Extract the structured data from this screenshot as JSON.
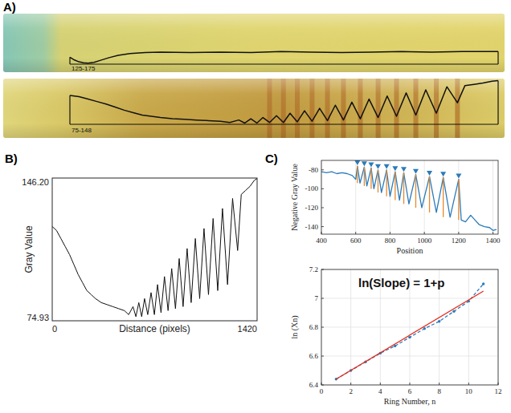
{
  "chart_data": [
    {
      "type": "line",
      "panel_label": "A)",
      "annotation": "125-175",
      "x": [
        0,
        15,
        30,
        45,
        60,
        80,
        100,
        130,
        160,
        200,
        250,
        300,
        400,
        500,
        600,
        700,
        800,
        900,
        1000,
        1100,
        1200,
        1300,
        1420
      ],
      "values": [
        140,
        134,
        130,
        128,
        127,
        129,
        133,
        139,
        144,
        148,
        150,
        151,
        150,
        151,
        150,
        152,
        151,
        150,
        151,
        152,
        151,
        152,
        152
      ],
      "xlim": [
        0,
        1420
      ],
      "ylim": [
        125,
        175
      ],
      "tick_labels": false,
      "color": "#111111"
    },
    {
      "type": "line",
      "annotation": "75-148",
      "x": [
        0,
        30,
        60,
        90,
        120,
        150,
        180,
        210,
        240,
        270,
        300,
        340,
        380,
        420,
        460,
        500,
        530,
        560,
        580,
        600,
        620,
        640,
        662,
        685,
        708,
        730,
        754,
        778,
        803,
        828,
        854,
        880,
        907,
        935,
        963,
        992,
        1022,
        1052,
        1083,
        1115,
        1147,
        1180,
        1215,
        1250,
        1285,
        1310,
        1340,
        1370,
        1400,
        1420
      ],
      "values": [
        122,
        120,
        116,
        112,
        108,
        103,
        98,
        94,
        90,
        88,
        86,
        84,
        83,
        82,
        81,
        80,
        78,
        82,
        77,
        84,
        77,
        86,
        78,
        89,
        78,
        93,
        79,
        97,
        80,
        101,
        81,
        106,
        82,
        111,
        84,
        116,
        86,
        121,
        88,
        126,
        90,
        131,
        93,
        136,
        110,
        138,
        140,
        142,
        145,
        146
      ],
      "bands": [
        662,
        708,
        754,
        803,
        854,
        907,
        963,
        1022,
        1083,
        1147,
        1215,
        1285
      ],
      "xlim": [
        0,
        1420
      ],
      "ylim": [
        75,
        148
      ],
      "tick_labels": false,
      "color": "#111111"
    },
    {
      "type": "line",
      "panel_label": "B)",
      "x_label": "Distance (pixels)",
      "y_label": "Gray Value",
      "x": [
        0,
        30,
        60,
        90,
        120,
        150,
        180,
        210,
        240,
        270,
        300,
        340,
        380,
        420,
        460,
        500,
        530,
        560,
        580,
        600,
        620,
        640,
        662,
        685,
        708,
        730,
        754,
        778,
        803,
        828,
        854,
        880,
        907,
        935,
        963,
        992,
        1022,
        1052,
        1083,
        1115,
        1147,
        1180,
        1215,
        1250,
        1285,
        1310,
        1340,
        1370,
        1400,
        1420
      ],
      "values": [
        122,
        120,
        116,
        112,
        108,
        103,
        98,
        94,
        90,
        88,
        86,
        84,
        83,
        82,
        81,
        80,
        78,
        82,
        77,
        84,
        77,
        86,
        78,
        89,
        78,
        93,
        79,
        97,
        80,
        101,
        81,
        106,
        82,
        111,
        84,
        116,
        86,
        121,
        88,
        126,
        90,
        131,
        93,
        136,
        110,
        138,
        140,
        142,
        145,
        146
      ],
      "xlim": [
        0,
        1420
      ],
      "ylim": [
        74.93,
        146.2
      ],
      "xticks": [
        0,
        1420
      ],
      "yticks": [
        74.93,
        {
          "value": 146.2,
          "label": "146.20"
        }
      ],
      "color": "#111111"
    },
    {
      "type": "line",
      "panel_label": "C)",
      "x_label": "Position",
      "y_label": "Negative Gray Value",
      "series": [
        {
          "type": "line",
          "color": "#2b7bba",
          "x": [
            400,
            430,
            460,
            490,
            520,
            550,
            580,
            600,
            610,
            625,
            650,
            665,
            690,
            706,
            730,
            750,
            780,
            800,
            830,
            855,
            880,
            910,
            950,
            985,
            1030,
            1070,
            1110,
            1150,
            1200,
            1215,
            1240,
            1270,
            1290,
            1320,
            1350,
            1380,
            1400,
            1420
          ],
          "values": [
            -82,
            -83,
            -82,
            -84,
            -83,
            -84,
            -86,
            -90,
            -76,
            -94,
            -77,
            -97,
            -78,
            -100,
            -80,
            -104,
            -80,
            -108,
            -82,
            -112,
            -83,
            -116,
            -85,
            -120,
            -87,
            -125,
            -88,
            -130,
            -90,
            -133,
            -135,
            -128,
            -132,
            -138,
            -140,
            -141,
            -144,
            -143
          ]
        },
        {
          "type": "segment",
          "color": "#e8892b",
          "x": [
            610,
            650,
            690,
            730,
            780,
            830,
            880,
            950,
            1030,
            1110,
            1200
          ],
          "values": [
            -76,
            -77,
            -78,
            -80,
            -80,
            -82,
            -83,
            -85,
            -87,
            -88,
            -90
          ],
          "base": [
            -94,
            -97,
            -100,
            -104,
            -108,
            -112,
            -116,
            -120,
            -125,
            -130,
            -133
          ]
        },
        {
          "type": "scatter",
          "marker": "triangle-down",
          "color": "#2b7bba",
          "x": [
            610,
            650,
            690,
            730,
            780,
            830,
            880,
            950,
            1030,
            1110,
            1200
          ],
          "values": [
            -76,
            -77,
            -78,
            -80,
            -80,
            -82,
            -83,
            -85,
            -87,
            -88,
            -90
          ]
        }
      ],
      "xlim": [
        400,
        1430
      ],
      "ylim": [
        -148,
        -70
      ],
      "xticks": [
        400,
        600,
        800,
        1000,
        1200,
        1400
      ],
      "yticks": [
        -140,
        -120,
        -100,
        -80
      ],
      "grid": "x"
    },
    {
      "type": "line",
      "annotation": "ln(Slope) = 1+p",
      "x_label": "Ring Number, n",
      "y_label": "ln (Xn)",
      "series": [
        {
          "type": "line",
          "line_style": "dashed",
          "marker": "circle",
          "color": "#2b7bba",
          "x": [
            1,
            2,
            3,
            4,
            5,
            6,
            7,
            8,
            9,
            10,
            11
          ],
          "values": [
            6.44,
            6.5,
            6.56,
            6.62,
            6.67,
            6.73,
            6.79,
            6.84,
            6.91,
            6.98,
            7.1
          ]
        },
        {
          "type": "line",
          "color": "#e8291c",
          "x": [
            1,
            11
          ],
          "values": [
            6.44,
            7.05
          ]
        }
      ],
      "xlim": [
        0,
        12
      ],
      "ylim": [
        6.4,
        7.2
      ],
      "xticks": [
        0,
        2,
        4,
        6,
        8,
        10,
        12
      ],
      "yticks": [
        6.4,
        6.6,
        6.8,
        7,
        7.2
      ],
      "grid": true
    }
  ]
}
